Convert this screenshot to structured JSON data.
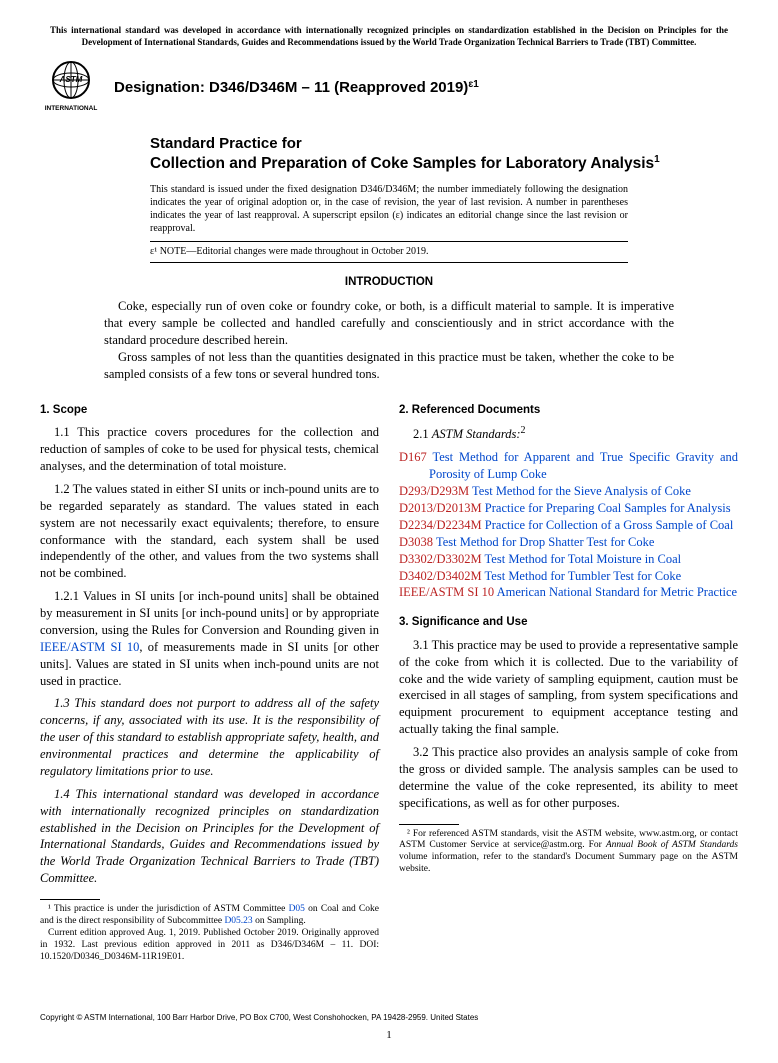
{
  "header": {
    "topnote": "This international standard was developed in accordance with internationally recognized principles on standardization established in the Decision on Principles for the Development of International Standards, Guides and Recommendations issued by the World Trade Organization Technical Barriers to Trade (TBT) Committee.",
    "designation_label": "Designation: D346/D346M – 11 (Reapproved 2019)",
    "eps_sup": "ɛ1",
    "logo_text_top": "ASTM",
    "logo_text_bottom": "INTERNATIONAL"
  },
  "title": {
    "kicker": "Standard Practice for",
    "main": "Collection and Preparation of Coke Samples for Laboratory Analysis",
    "sup": "1"
  },
  "issue_note": "This standard is issued under the fixed designation D346/D346M; the number immediately following the designation indicates the year of original adoption or, in the case of revision, the year of last revision. A number in parentheses indicates the year of last reapproval. A superscript epsilon (ɛ) indicates an editorial change since the last revision or reapproval.",
  "eps_note": "ɛ¹ NOTE—Editorial changes were made throughout in October 2019.",
  "intro": {
    "heading": "INTRODUCTION",
    "p1": "Coke, especially run of oven coke or foundry coke, or both, is a difficult material to sample. It is imperative that every sample be collected and handled carefully and conscientiously and in strict accordance with the standard procedure described herein.",
    "p2": "Gross samples of not less than the quantities designated in this practice must be taken, whether the coke to be sampled consists of a few tons or several hundred tons."
  },
  "scope": {
    "heading": "1. Scope",
    "p1": "1.1 This practice covers procedures for the collection and reduction of samples of coke to be used for physical tests, chemical analyses, and the determination of total moisture.",
    "p2": "1.2 The values stated in either SI units or inch-pound units are to be regarded separately as standard. The values stated in each system are not necessarily exact equivalents; therefore, to ensure conformance with the standard, each system shall be used independently of the other, and values from the two systems shall not be combined.",
    "p3a": "1.2.1 Values in SI units [or inch-pound units] shall be obtained by measurement in SI units [or inch-pound units] or by appropriate conversion, using the Rules for Conversion and Rounding given in ",
    "p3link": "IEEE/ASTM SI 10",
    "p3b": ", of measurements made in SI units [or other units]. Values are stated in SI units when inch-pound units are not used in practice.",
    "p4": "1.3 This standard does not purport to address all of the safety concerns, if any, associated with its use. It is the responsibility of the user of this standard to establish appropriate safety, health, and environmental practices and determine the applicability of regulatory limitations prior to use.",
    "p5": "1.4 This international standard was developed in accordance with internationally recognized principles on standardization established in the Decision on Principles for the Development of International Standards, Guides and Recommendations issued by the World Trade Organization Technical Barriers to Trade (TBT) Committee."
  },
  "refs": {
    "heading": "2. Referenced Documents",
    "subheading_pre": "2.1 ",
    "subheading": "ASTM Standards:",
    "subheading_sup": "2",
    "items": [
      {
        "code": "D167",
        "title": "Test Method for Apparent and True Specific Gravity and Porosity of Lump Coke"
      },
      {
        "code": "D293/D293M",
        "title": "Test Method for the Sieve Analysis of Coke"
      },
      {
        "code": "D2013/D2013M",
        "title": "Practice for Preparing Coal Samples for Analysis"
      },
      {
        "code": "D2234/D2234M",
        "title": "Practice for Collection of a Gross Sample of Coal"
      },
      {
        "code": "D3038",
        "title": "Test Method for Drop Shatter Test for Coke"
      },
      {
        "code": "D3302/D3302M",
        "title": "Test Method for Total Moisture in Coal"
      },
      {
        "code": "D3402/D3402M",
        "title": "Test Method for Tumbler Test for Coke"
      },
      {
        "code": "IEEE/ASTM SI 10",
        "title": "American National Standard for Metric Practice"
      }
    ]
  },
  "sig": {
    "heading": "3. Significance and Use",
    "p1": "3.1 This practice may be used to provide a representative sample of the coke from which it is collected. Due to the variability of coke and the wide variety of sampling equipment, caution must be exercised in all stages of sampling, from system specifications and equipment procurement to equipment acceptance testing and actually taking the final sample.",
    "p2": "3.2 This practice also provides an analysis sample of coke from the gross or divided sample. The analysis samples can be used to determine the value of the coke represented, its ability to meet specifications, as well as for other purposes."
  },
  "footnotes": {
    "f1a": "¹ This practice is under the jurisdiction of ASTM Committee ",
    "f1link1": "D05",
    "f1b": " on Coal and Coke and is the direct responsibility of Subcommittee ",
    "f1link2": "D05.23",
    "f1c": " on Sampling.",
    "f1d": "Current edition approved Aug. 1, 2019. Published October 2019. Originally approved in 1932. Last previous edition approved in 2011 as D346/D346M – 11. DOI: 10.1520/D0346_D0346M-11R19E01.",
    "f2a": "² For referenced ASTM standards, visit the ASTM website, www.astm.org, or contact ASTM Customer Service at service@astm.org. For ",
    "f2ital": "Annual Book of ASTM Standards",
    "f2b": " volume information, refer to the standard's Document Summary page on the ASTM website."
  },
  "copyright": "Copyright © ASTM International, 100 Barr Harbor Drive, PO Box C700, West Conshohocken, PA 19428-2959. United States",
  "pagenum": "1",
  "colors": {
    "link": "#0047cc",
    "refcode": "#bb2222",
    "text": "#000000",
    "bg": "#ffffff"
  }
}
